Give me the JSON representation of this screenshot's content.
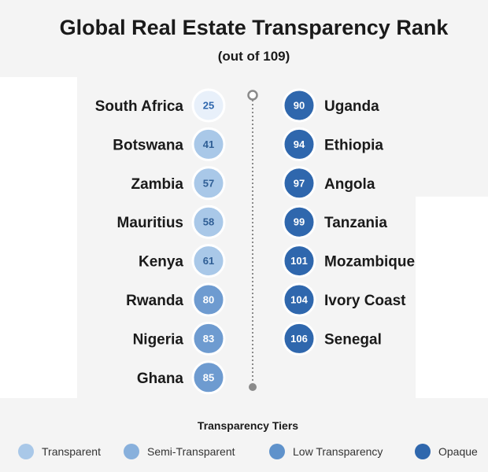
{
  "chart_data": {
    "type": "ranked-dot-list",
    "title": "Global Real Estate Transparency Rank",
    "subtitle": "(out of 109)",
    "tiers": [
      {
        "name": "Transparent",
        "color": "#a9c8e8"
      },
      {
        "name": "Semi-Transparent",
        "color": "#88b0dc"
      },
      {
        "name": "Low Transparency",
        "color": "#5f92cb"
      },
      {
        "name": "Opaque",
        "color": "#2f67ad"
      }
    ],
    "left_column": [
      {
        "country": "South Africa",
        "rank": 25,
        "tier": "Transparent",
        "fill": "#e8f0fa",
        "text_color": "#2f67ad"
      },
      {
        "country": "Botswana",
        "rank": 41,
        "tier": "Transparent",
        "fill": "#a9c8e8",
        "text_color": "#2f5e95"
      },
      {
        "country": "Zambia",
        "rank": 57,
        "tier": "Transparent",
        "fill": "#a9c8e8",
        "text_color": "#2f5e95"
      },
      {
        "country": "Mauritius",
        "rank": 58,
        "tier": "Transparent",
        "fill": "#a9c8e8",
        "text_color": "#2f5e95"
      },
      {
        "country": "Kenya",
        "rank": 61,
        "tier": "Transparent",
        "fill": "#a9c8e8",
        "text_color": "#2f5e95"
      },
      {
        "country": "Rwanda",
        "rank": 80,
        "tier": "Low Transparency",
        "fill": "#6e9bd0",
        "text_color": "#ffffff"
      },
      {
        "country": "Nigeria",
        "rank": 83,
        "tier": "Low Transparency",
        "fill": "#6e9bd0",
        "text_color": "#ffffff"
      },
      {
        "country": "Ghana",
        "rank": 85,
        "tier": "Low Transparency",
        "fill": "#6e9bd0",
        "text_color": "#ffffff"
      }
    ],
    "right_column": [
      {
        "country": "Uganda",
        "rank": 90,
        "tier": "Opaque",
        "fill": "#2f67ad",
        "text_color": "#ffffff"
      },
      {
        "country": "Ethiopia",
        "rank": 94,
        "tier": "Opaque",
        "fill": "#2f67ad",
        "text_color": "#ffffff"
      },
      {
        "country": "Angola",
        "rank": 97,
        "tier": "Opaque",
        "fill": "#2f67ad",
        "text_color": "#ffffff"
      },
      {
        "country": "Tanzania",
        "rank": 99,
        "tier": "Opaque",
        "fill": "#2f67ad",
        "text_color": "#ffffff"
      },
      {
        "country": "Mozambique",
        "rank": 101,
        "tier": "Opaque",
        "fill": "#2f67ad",
        "text_color": "#ffffff"
      },
      {
        "country": "Ivory Coast",
        "rank": 104,
        "tier": "Opaque",
        "fill": "#2f67ad",
        "text_color": "#ffffff"
      },
      {
        "country": "Senegal",
        "rank": 106,
        "tier": "Opaque",
        "fill": "#2f67ad",
        "text_color": "#ffffff"
      }
    ],
    "legend": {
      "title": "Transparency Tiers",
      "placement": "bottom"
    }
  },
  "colors": {
    "background": "#f4f4f4",
    "connector": "#8a8a8a",
    "text": "#1a1a1a"
  }
}
